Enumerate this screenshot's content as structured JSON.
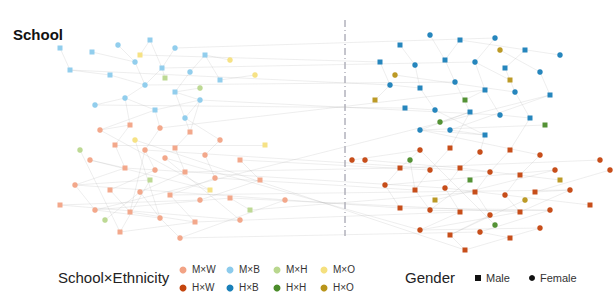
{
  "chart_data": {
    "type": "graph",
    "title": "School",
    "legend_title": "School×Ethnicity",
    "groups": [
      {
        "name": "M×W",
        "color": "#f2a385"
      },
      {
        "name": "M×B",
        "color": "#8ccbec"
      },
      {
        "name": "M×H",
        "color": "#b9d78e"
      },
      {
        "name": "M×O",
        "color": "#f5e07e"
      },
      {
        "name": "H×W",
        "color": "#c4450e"
      },
      {
        "name": "H×B",
        "color": "#1a80b9"
      },
      {
        "name": "H×H",
        "color": "#4b8c2a"
      },
      {
        "name": "H×O",
        "color": "#b8951a"
      }
    ],
    "gender_title": "Gender",
    "genders": [
      {
        "name": "Male",
        "marker": "rect"
      },
      {
        "name": "Female",
        "marker": "circle"
      }
    ],
    "nodes": [
      [
        92,
        52,
        1,
        0
      ],
      [
        118,
        45,
        1,
        1
      ],
      [
        150,
        40,
        1,
        0
      ],
      [
        175,
        48,
        1,
        1
      ],
      [
        205,
        55,
        1,
        0
      ],
      [
        135,
        62,
        1,
        1
      ],
      [
        162,
        68,
        1,
        0
      ],
      [
        190,
        72,
        1,
        1
      ],
      [
        110,
        75,
        1,
        0
      ],
      [
        145,
        85,
        1,
        1
      ],
      [
        175,
        92,
        1,
        0
      ],
      [
        125,
        98,
        1,
        1
      ],
      [
        200,
        100,
        1,
        1
      ],
      [
        155,
        110,
        1,
        0
      ],
      [
        95,
        105,
        1,
        1
      ],
      [
        220,
        80,
        1,
        0
      ],
      [
        70,
        70,
        1,
        0
      ],
      [
        185,
        118,
        1,
        1
      ],
      [
        165,
        78,
        2,
        0
      ],
      [
        230,
        60,
        3,
        1
      ],
      [
        140,
        55,
        3,
        0
      ],
      [
        200,
        88,
        2,
        1
      ],
      [
        60,
        48,
        1,
        0
      ],
      [
        255,
        75,
        3,
        1
      ],
      [
        100,
        130,
        0,
        1
      ],
      [
        130,
        125,
        0,
        0
      ],
      [
        160,
        128,
        0,
        1
      ],
      [
        190,
        132,
        0,
        0
      ],
      [
        220,
        140,
        0,
        1
      ],
      [
        115,
        145,
        0,
        0
      ],
      [
        145,
        150,
        0,
        1
      ],
      [
        175,
        148,
        0,
        0
      ],
      [
        205,
        155,
        0,
        1
      ],
      [
        240,
        160,
        0,
        0
      ],
      [
        90,
        160,
        0,
        1
      ],
      [
        125,
        168,
        0,
        0
      ],
      [
        155,
        170,
        0,
        1
      ],
      [
        185,
        172,
        0,
        0
      ],
      [
        215,
        178,
        0,
        1
      ],
      [
        260,
        180,
        0,
        0
      ],
      [
        75,
        185,
        0,
        1
      ],
      [
        110,
        190,
        0,
        0
      ],
      [
        140,
        192,
        0,
        1
      ],
      [
        170,
        195,
        0,
        0
      ],
      [
        200,
        200,
        0,
        1
      ],
      [
        230,
        198,
        0,
        0
      ],
      [
        95,
        210,
        0,
        1
      ],
      [
        130,
        212,
        0,
        0
      ],
      [
        160,
        218,
        0,
        1
      ],
      [
        195,
        222,
        0,
        0
      ],
      [
        60,
        205,
        0,
        0
      ],
      [
        285,
        200,
        0,
        1
      ],
      [
        180,
        238,
        0,
        1
      ],
      [
        120,
        232,
        0,
        0
      ],
      [
        240,
        220,
        0,
        1
      ],
      [
        165,
        158,
        0,
        1
      ],
      [
        150,
        180,
        2,
        0
      ],
      [
        105,
        220,
        2,
        1
      ],
      [
        250,
        210,
        2,
        0
      ],
      [
        80,
        150,
        2,
        1
      ],
      [
        210,
        190,
        3,
        0
      ],
      [
        135,
        140,
        3,
        1
      ],
      [
        265,
        145,
        3,
        0
      ],
      [
        400,
        45,
        5,
        0
      ],
      [
        430,
        35,
        5,
        1
      ],
      [
        460,
        40,
        5,
        0
      ],
      [
        495,
        38,
        5,
        1
      ],
      [
        525,
        50,
        5,
        0
      ],
      [
        415,
        65,
        5,
        1
      ],
      [
        445,
        60,
        5,
        0
      ],
      [
        475,
        62,
        5,
        1
      ],
      [
        505,
        68,
        5,
        0
      ],
      [
        540,
        72,
        5,
        1
      ],
      [
        390,
        85,
        5,
        1
      ],
      [
        420,
        88,
        5,
        0
      ],
      [
        455,
        82,
        5,
        1
      ],
      [
        485,
        90,
        5,
        0
      ],
      [
        515,
        92,
        5,
        1
      ],
      [
        550,
        95,
        5,
        0
      ],
      [
        405,
        108,
        5,
        0
      ],
      [
        435,
        110,
        5,
        1
      ],
      [
        470,
        112,
        5,
        0
      ],
      [
        500,
        115,
        5,
        1
      ],
      [
        530,
        118,
        5,
        0
      ],
      [
        450,
        130,
        5,
        1
      ],
      [
        485,
        135,
        5,
        0
      ],
      [
        420,
        130,
        5,
        1
      ],
      [
        560,
        55,
        5,
        1
      ],
      [
        380,
        62,
        5,
        0
      ],
      [
        465,
        100,
        6,
        0
      ],
      [
        395,
        75,
        7,
        1
      ],
      [
        510,
        80,
        7,
        0
      ],
      [
        440,
        122,
        6,
        1
      ],
      [
        500,
        50,
        7,
        1
      ],
      [
        545,
        125,
        6,
        0
      ],
      [
        375,
        100,
        7,
        0
      ],
      [
        420,
        150,
        4,
        1
      ],
      [
        450,
        148,
        4,
        0
      ],
      [
        480,
        152,
        4,
        1
      ],
      [
        510,
        150,
        4,
        0
      ],
      [
        540,
        155,
        4,
        1
      ],
      [
        400,
        168,
        4,
        0
      ],
      [
        430,
        170,
        4,
        1
      ],
      [
        460,
        168,
        4,
        0
      ],
      [
        490,
        172,
        4,
        1
      ],
      [
        520,
        175,
        4,
        0
      ],
      [
        555,
        170,
        4,
        1
      ],
      [
        385,
        185,
        4,
        1
      ],
      [
        415,
        190,
        4,
        0
      ],
      [
        445,
        188,
        4,
        1
      ],
      [
        475,
        192,
        4,
        0
      ],
      [
        505,
        195,
        4,
        1
      ],
      [
        535,
        192,
        4,
        0
      ],
      [
        570,
        190,
        4,
        1
      ],
      [
        400,
        208,
        4,
        0
      ],
      [
        430,
        210,
        4,
        1
      ],
      [
        460,
        212,
        4,
        0
      ],
      [
        490,
        215,
        4,
        1
      ],
      [
        520,
        212,
        4,
        0
      ],
      [
        550,
        210,
        4,
        1
      ],
      [
        420,
        230,
        4,
        1
      ],
      [
        450,
        235,
        4,
        0
      ],
      [
        480,
        232,
        4,
        1
      ],
      [
        510,
        238,
        4,
        0
      ],
      [
        540,
        228,
        4,
        1
      ],
      [
        465,
        250,
        4,
        0
      ],
      [
        600,
        160,
        4,
        1
      ],
      [
        365,
        160,
        4,
        1
      ],
      [
        590,
        205,
        4,
        0
      ],
      [
        470,
        180,
        6,
        0
      ],
      [
        525,
        200,
        7,
        1
      ],
      [
        435,
        200,
        7,
        0
      ],
      [
        495,
        225,
        6,
        1
      ],
      [
        560,
        180,
        7,
        0
      ],
      [
        410,
        160,
        6,
        1
      ],
      [
        352,
        160,
        4,
        1
      ],
      [
        610,
        170,
        4,
        1
      ]
    ],
    "edges": [
      [
        0,
        5
      ],
      [
        1,
        5
      ],
      [
        2,
        6
      ],
      [
        3,
        6
      ],
      [
        4,
        7
      ],
      [
        5,
        9
      ],
      [
        6,
        9
      ],
      [
        7,
        10
      ],
      [
        8,
        9
      ],
      [
        9,
        11
      ],
      [
        10,
        12
      ],
      [
        11,
        13
      ],
      [
        12,
        13
      ],
      [
        14,
        11
      ],
      [
        15,
        4
      ],
      [
        16,
        8
      ],
      [
        17,
        12
      ],
      [
        18,
        6
      ],
      [
        19,
        4
      ],
      [
        20,
        2
      ],
      [
        21,
        10
      ],
      [
        22,
        16
      ],
      [
        23,
        15
      ],
      [
        13,
        26
      ],
      [
        11,
        25
      ],
      [
        17,
        28
      ],
      [
        10,
        27
      ],
      [
        24,
        25
      ],
      [
        25,
        29
      ],
      [
        26,
        30
      ],
      [
        27,
        31
      ],
      [
        28,
        32
      ],
      [
        29,
        35
      ],
      [
        30,
        36
      ],
      [
        31,
        37
      ],
      [
        32,
        38
      ],
      [
        33,
        39
      ],
      [
        34,
        35
      ],
      [
        35,
        40
      ],
      [
        36,
        41
      ],
      [
        37,
        42
      ],
      [
        38,
        43
      ],
      [
        39,
        44
      ],
      [
        40,
        46
      ],
      [
        41,
        47
      ],
      [
        42,
        48
      ],
      [
        43,
        49
      ],
      [
        44,
        50
      ],
      [
        45,
        46
      ],
      [
        46,
        48
      ],
      [
        47,
        49
      ],
      [
        48,
        52
      ],
      [
        49,
        53
      ],
      [
        50,
        54
      ],
      [
        51,
        52
      ],
      [
        53,
        56
      ],
      [
        55,
        54
      ],
      [
        57,
        42
      ],
      [
        58,
        45
      ],
      [
        59,
        53
      ],
      [
        60,
        34
      ],
      [
        61,
        48
      ],
      [
        62,
        29
      ],
      [
        24,
        60
      ],
      [
        47,
        30
      ],
      [
        56,
        40
      ],
      [
        63,
        68
      ],
      [
        64,
        69
      ],
      [
        65,
        69
      ],
      [
        66,
        70
      ],
      [
        67,
        71
      ],
      [
        68,
        74
      ],
      [
        69,
        75
      ],
      [
        70,
        76
      ],
      [
        71,
        77
      ],
      [
        72,
        78
      ],
      [
        73,
        74
      ],
      [
        74,
        80
      ],
      [
        75,
        81
      ],
      [
        76,
        82
      ],
      [
        77,
        83
      ],
      [
        78,
        84
      ],
      [
        79,
        80
      ],
      [
        80,
        85
      ],
      [
        81,
        86
      ],
      [
        82,
        83
      ],
      [
        84,
        85
      ],
      [
        86,
        85
      ],
      [
        87,
        65
      ],
      [
        88,
        73
      ],
      [
        89,
        76
      ],
      [
        90,
        77
      ],
      [
        91,
        70
      ],
      [
        92,
        81
      ],
      [
        93,
        72
      ],
      [
        94,
        86
      ],
      [
        95,
        73
      ],
      [
        96,
        101
      ],
      [
        97,
        102
      ],
      [
        98,
        103
      ],
      [
        99,
        104
      ],
      [
        100,
        105
      ],
      [
        101,
        107
      ],
      [
        102,
        108
      ],
      [
        103,
        109
      ],
      [
        104,
        110
      ],
      [
        105,
        111
      ],
      [
        106,
        107
      ],
      [
        107,
        114
      ],
      [
        108,
        115
      ],
      [
        109,
        116
      ],
      [
        110,
        117
      ],
      [
        111,
        118
      ],
      [
        112,
        113
      ],
      [
        113,
        118
      ],
      [
        114,
        119
      ],
      [
        115,
        119
      ],
      [
        116,
        120
      ],
      [
        117,
        121
      ],
      [
        118,
        120
      ],
      [
        119,
        122
      ],
      [
        120,
        124
      ],
      [
        121,
        125
      ],
      [
        122,
        123
      ],
      [
        124,
        125
      ],
      [
        126,
        101
      ],
      [
        127,
        103
      ],
      [
        128,
        109
      ],
      [
        129,
        115
      ],
      [
        130,
        121
      ],
      [
        131,
        106
      ],
      [
        132,
        96
      ],
      [
        133,
        103
      ],
      [
        134,
        108
      ],
      [
        135,
        96
      ],
      [
        136,
        112
      ],
      [
        6,
        70
      ],
      [
        9,
        75
      ],
      [
        12,
        82
      ],
      [
        30,
        104
      ],
      [
        35,
        109
      ],
      [
        40,
        114
      ],
      [
        45,
        118
      ],
      [
        52,
        122
      ],
      [
        20,
        88
      ],
      [
        33,
        102
      ],
      [
        49,
        116
      ],
      [
        14,
        79
      ],
      [
        38,
        108
      ],
      [
        43,
        113
      ],
      [
        26,
        76
      ],
      [
        55,
        120
      ],
      [
        16,
        73
      ],
      [
        3,
        66
      ],
      [
        58,
        110
      ],
      [
        61,
        125
      ],
      [
        37,
        101
      ],
      [
        46,
        78
      ],
      [
        85,
        98
      ],
      [
        83,
        99
      ],
      [
        86,
        100
      ],
      [
        81,
        97
      ],
      [
        13,
        24
      ],
      [
        12,
        27
      ]
    ]
  }
}
